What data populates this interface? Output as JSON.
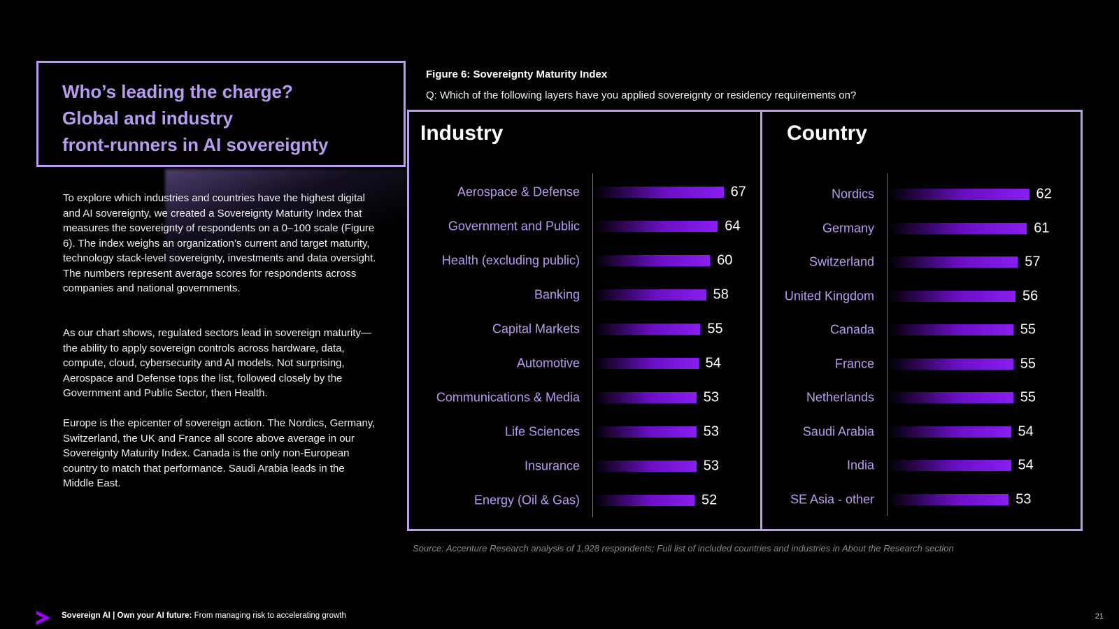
{
  "heading": {
    "line1": "Who’s leading the charge?",
    "line2": "Global and industry",
    "line3": "front-runners in AI sovereignty"
  },
  "body": {
    "p1": "To explore which industries and countries have the highest digital and AI sovereignty, we created a Sovereignty Maturity Index that measures the sovereignty of respondents on a 0–100 scale (Figure 6). The index weighs an organization’s current and target maturity, technology stack-level sovereignty, investments and data oversight. The numbers represent average scores for respondents across companies and national governments.",
    "p2": "As our chart shows, regulated sectors lead in sovereign maturity—the ability to apply sovereign controls across hardware, data, compute, cloud, cybersecurity and AI models. Not surprising, Aerospace and Defense tops the list, followed closely by the Government and Public Sector, then Health.",
    "p3": "Europe is the epicenter of sovereign action. The Nordics, Germany, Switzerland, the UK and France all score above average in our Sovereignty Maturity Index. Canada is the only non-European country to match that performance. Saudi Arabia leads in the Middle East."
  },
  "figure": {
    "title": "Figure 6: Sovereignty Maturity Index",
    "question": "Q: Which of the following layers have you applied sovereignty or residency requirements on?",
    "source": "Source: Accenture Research analysis of 1,928 respondents; Full list of included countries and industries in About the Research section"
  },
  "colors": {
    "accent": "#b79cf0",
    "bar_end": "#8a1df0",
    "bar_mid": "#6a0fc4",
    "background": "#000000"
  },
  "chart_data": [
    {
      "type": "bar",
      "orientation": "horizontal",
      "title": "Industry",
      "categories": [
        "Aerospace & Defense",
        "Government and Public",
        "Health (excluding public)",
        "Banking",
        "Capital Markets",
        "Automotive",
        "Communications & Media",
        "Life Sciences",
        "Insurance",
        "Energy (Oil & Gas)"
      ],
      "values": [
        67,
        64,
        60,
        58,
        55,
        54,
        53,
        53,
        53,
        52
      ],
      "xlim": [
        0,
        100
      ]
    },
    {
      "type": "bar",
      "orientation": "horizontal",
      "title": "Country",
      "categories": [
        "Nordics",
        "Germany",
        "Switzerland",
        "United Kingdom",
        "Canada",
        "France",
        "Netherlands",
        "Saudi Arabia",
        "India",
        "SE Asia - other"
      ],
      "values": [
        62,
        61,
        57,
        56,
        55,
        55,
        55,
        54,
        54,
        53
      ],
      "xlim": [
        0,
        100
      ]
    }
  ],
  "footer": {
    "bold": "Sovereign AI | Own your AI future:",
    "rest": " From managing risk to accelerating growth",
    "page": "21"
  }
}
